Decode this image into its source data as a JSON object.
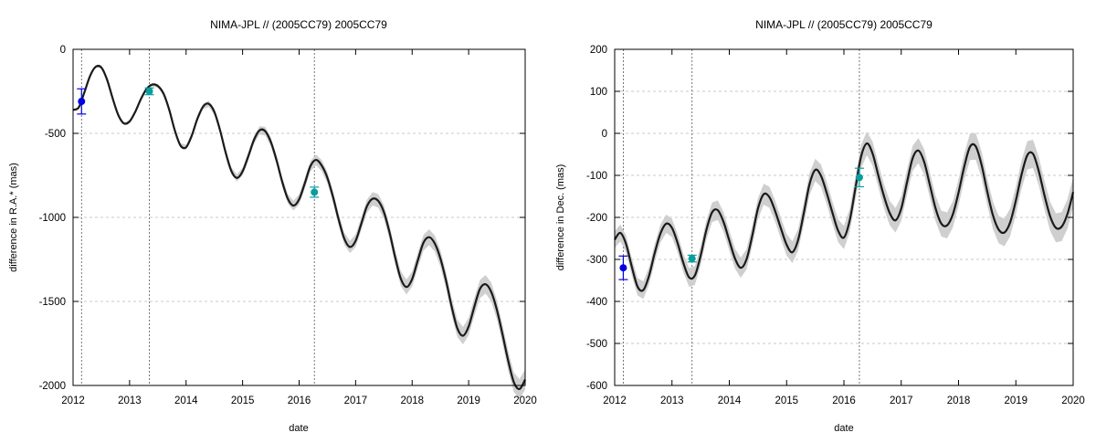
{
  "chart_data": [
    {
      "type": "line",
      "title": "NIMA-JPL // (2005CC79) 2005CC79",
      "xlabel": "date",
      "ylabel": "difference in R.A.* (mas)",
      "xlim": [
        2012,
        2020
      ],
      "ylim": [
        -2000,
        0
      ],
      "xticks": [
        "2012",
        "2013",
        "2014",
        "2015",
        "2016",
        "2017",
        "2018",
        "2019",
        "2020"
      ],
      "yticks": [
        "-2000",
        "-1500",
        "-1000",
        "-500",
        "0"
      ],
      "grid": true,
      "vertical_lines": [
        2012.15,
        2013.35,
        2016.27
      ],
      "curve": {
        "x": [
          2012.0,
          2012.1,
          2012.2,
          2012.3,
          2012.4,
          2012.5,
          2012.6,
          2012.7,
          2012.8,
          2012.9,
          2013.0,
          2013.1,
          2013.2,
          2013.3,
          2013.4,
          2013.5,
          2013.6,
          2013.7,
          2013.8,
          2013.9,
          2014.0,
          2014.1,
          2014.2,
          2014.3,
          2014.4,
          2014.5,
          2014.6,
          2014.7,
          2014.8,
          2014.9,
          2015.0,
          2015.1,
          2015.2,
          2015.3,
          2015.4,
          2015.5,
          2015.6,
          2015.7,
          2015.8,
          2015.9,
          2016.0,
          2016.1,
          2016.2,
          2016.3,
          2016.4,
          2016.5,
          2016.6,
          2016.7,
          2016.8,
          2016.9,
          2017.0,
          2017.1,
          2017.2,
          2017.3,
          2017.4,
          2017.5,
          2017.6,
          2017.7,
          2017.8,
          2017.9,
          2018.0,
          2018.1,
          2018.2,
          2018.3,
          2018.4,
          2018.5,
          2018.6,
          2018.7,
          2018.8,
          2018.9,
          2019.0,
          2019.1,
          2019.2,
          2019.3,
          2019.4,
          2019.5,
          2019.6,
          2019.7,
          2019.8,
          2019.9,
          2020.0
        ],
        "y": [
          -360,
          -346,
          -256,
          -159,
          -104,
          -108,
          -179,
          -291,
          -391,
          -441,
          -429,
          -372,
          -296,
          -236,
          -210,
          -218,
          -263,
          -358,
          -482,
          -572,
          -583,
          -514,
          -413,
          -341,
          -324,
          -372,
          -480,
          -614,
          -723,
          -765,
          -726,
          -637,
          -540,
          -482,
          -487,
          -551,
          -659,
          -787,
          -889,
          -930,
          -893,
          -798,
          -695,
          -658,
          -692,
          -764,
          -878,
          -1013,
          -1127,
          -1176,
          -1139,
          -1038,
          -934,
          -889,
          -902,
          -968,
          -1089,
          -1238,
          -1365,
          -1414,
          -1367,
          -1256,
          -1151,
          -1118,
          -1155,
          -1244,
          -1376,
          -1532,
          -1660,
          -1704,
          -1649,
          -1532,
          -1426,
          -1398,
          -1444,
          -1551,
          -1697,
          -1853,
          -1981,
          -2021,
          -1965
        ]
      },
      "uncertainty_halfwidth": [
        0,
        60
      ],
      "series": [
        {
          "name": "",
          "color": "#0000e0",
          "x": [
            2012.15
          ],
          "y": [
            -310
          ],
          "yerr": [
            75
          ]
        },
        {
          "name": "",
          "color": "#0a9d9d",
          "x": [
            2013.35,
            2016.27
          ],
          "y": [
            -250,
            -850
          ],
          "yerr": [
            20,
            30
          ]
        }
      ]
    },
    {
      "type": "line",
      "title": "NIMA-JPL // (2005CC79) 2005CC79",
      "xlabel": "date",
      "ylabel": "difference in Dec. (mas)",
      "xlim": [
        2012,
        2020
      ],
      "ylim": [
        -600,
        200
      ],
      "xticks": [
        "2012",
        "2013",
        "2014",
        "2015",
        "2016",
        "2017",
        "2018",
        "2019",
        "2020"
      ],
      "yticks": [
        "-600",
        "-500",
        "-400",
        "-300",
        "-200",
        "-100",
        "0",
        "100",
        "200"
      ],
      "grid": true,
      "vertical_lines": [
        2012.15,
        2013.35,
        2016.27
      ],
      "curve": {
        "x": [
          2012.0,
          2012.1,
          2012.2,
          2012.3,
          2012.4,
          2012.5,
          2012.6,
          2012.7,
          2012.8,
          2012.9,
          2013.0,
          2013.1,
          2013.2,
          2013.3,
          2013.4,
          2013.5,
          2013.6,
          2013.7,
          2013.8,
          2013.9,
          2014.0,
          2014.1,
          2014.2,
          2014.3,
          2014.4,
          2014.5,
          2014.6,
          2014.7,
          2014.8,
          2014.9,
          2015.0,
          2015.1,
          2015.2,
          2015.3,
          2015.4,
          2015.5,
          2015.6,
          2015.7,
          2015.8,
          2015.9,
          2016.0,
          2016.1,
          2016.2,
          2016.3,
          2016.4,
          2016.5,
          2016.6,
          2016.7,
          2016.8,
          2016.9,
          2017.0,
          2017.1,
          2017.2,
          2017.3,
          2017.4,
          2017.5,
          2017.6,
          2017.7,
          2017.8,
          2017.9,
          2018.0,
          2018.1,
          2018.2,
          2018.3,
          2018.4,
          2018.5,
          2018.6,
          2018.7,
          2018.8,
          2018.9,
          2019.0,
          2019.1,
          2019.2,
          2019.3,
          2019.4,
          2019.5,
          2019.6,
          2019.7,
          2019.8,
          2019.9,
          2020.0
        ],
        "y": [
          -253,
          -237,
          -264,
          -318,
          -365,
          -373,
          -339,
          -284,
          -238,
          -215,
          -225,
          -262,
          -309,
          -343,
          -338,
          -291,
          -230,
          -188,
          -183,
          -211,
          -255,
          -298,
          -320,
          -300,
          -244,
          -179,
          -145,
          -152,
          -185,
          -226,
          -265,
          -283,
          -254,
          -190,
          -121,
          -87,
          -101,
          -142,
          -189,
          -232,
          -248,
          -208,
          -131,
          -55,
          -24,
          -48,
          -100,
          -150,
          -190,
          -207,
          -179,
          -117,
          -59,
          -41,
          -68,
          -123,
          -179,
          -215,
          -219,
          -193,
          -141,
          -79,
          -32,
          -31,
          -74,
          -138,
          -195,
          -229,
          -236,
          -212,
          -160,
          -98,
          -52,
          -49,
          -90,
          -148,
          -198,
          -225,
          -222,
          -192,
          -140
        ]
      },
      "uncertainty_halfwidth": [
        20,
        35
      ],
      "series": [
        {
          "name": "",
          "color": "#0000e0",
          "x": [
            2012.15
          ],
          "y": [
            -320
          ],
          "yerr": [
            28
          ]
        },
        {
          "name": "",
          "color": "#0a9d9d",
          "x": [
            2013.35,
            2016.27
          ],
          "y": [
            -298,
            -105
          ],
          "yerr": [
            8,
            22
          ]
        }
      ]
    }
  ]
}
